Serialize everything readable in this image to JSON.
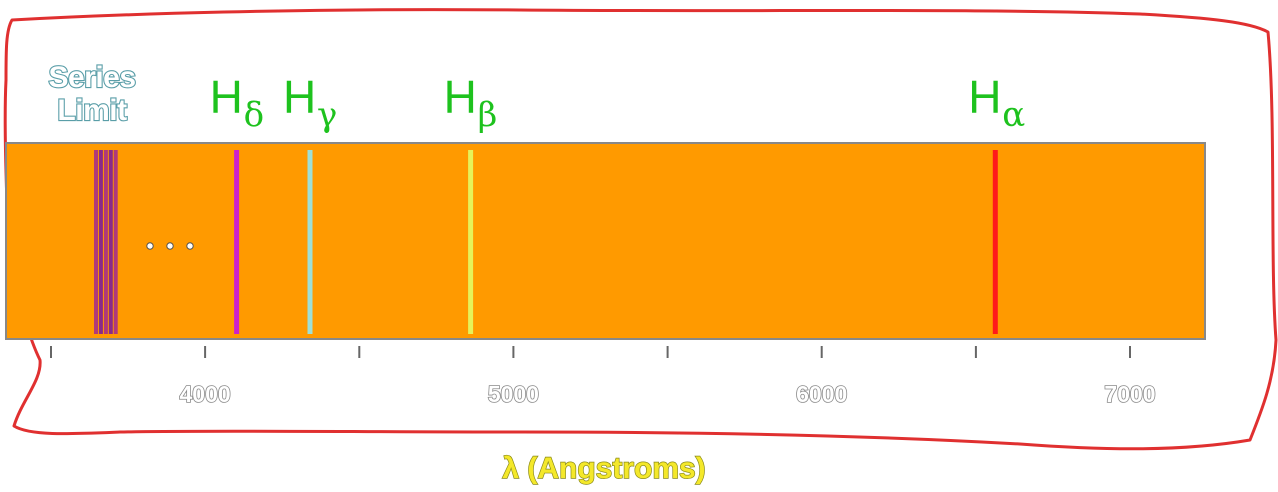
{
  "labels": {
    "series_limit_line1": "Series",
    "series_limit_line2": "Limit",
    "ellipsis": "..."
  },
  "spectral_lines": [
    {
      "name": "H",
      "subscript": "δ",
      "wavelength": 4102,
      "color": "#cc22cc"
    },
    {
      "name": "H",
      "subscript": "γ",
      "wavelength": 4340,
      "color": "#9fe0d6"
    },
    {
      "name": "H",
      "subscript": "β",
      "wavelength": 4861,
      "color": "#e6f25a"
    },
    {
      "name": "H",
      "subscript": "α",
      "wavelength": 6563,
      "color": "#ff1a1a"
    }
  ],
  "series_limit": {
    "wavelength_range": [
      3646,
      3710
    ],
    "color": "#b03a7a"
  },
  "axis": {
    "title": "λ (Angstroms)",
    "min": 3500,
    "max": 7250,
    "major_ticks": [
      {
        "value": 3500,
        "label": ""
      },
      {
        "value": 4000,
        "label": "4000"
      },
      {
        "value": 4500,
        "label": ""
      },
      {
        "value": 5000,
        "label": "5000"
      },
      {
        "value": 5500,
        "label": ""
      },
      {
        "value": 6000,
        "label": "6000"
      },
      {
        "value": 6500,
        "label": ""
      },
      {
        "value": 7000,
        "label": "7000"
      }
    ]
  },
  "colors": {
    "spectrum_background": "#ff9a00",
    "spectrum_border": "#888888",
    "label_green": "#1ec21e",
    "annotation_outline": "#e03030",
    "axis_title_color": "#f4e82a"
  }
}
